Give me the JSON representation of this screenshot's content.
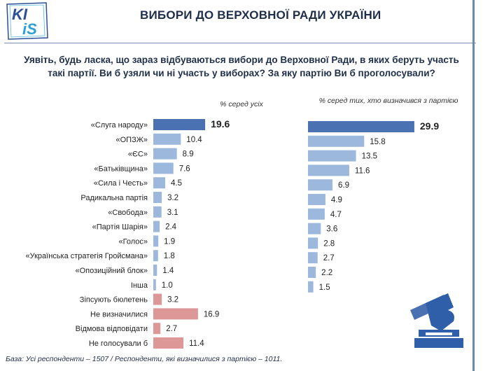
{
  "logo": {
    "icon": "kiis-logo",
    "top_text": "KI",
    "bottom_text": "iS"
  },
  "header": {
    "title": "ВИБОРИ ДО ВЕРХОВНОЇ РАДИ УКРАЇНИ"
  },
  "question": "Уявіть, будь ласка, що зараз відбуваються вибори до Верховної Ради, в яких беруть участь такі партії. Ви б узяли чи ні участь у виборах? За яку партію Ви б проголосували?",
  "footer": "База: Усі респонденти – 1507 / Респонденти, які визначилися з партією – 1011.",
  "colors": {
    "highlight": "#4a72b2",
    "party": "#9db8dd",
    "nonvote": "#dd9797",
    "text": "#1f2f4a"
  },
  "chart_data": [
    {
      "type": "bar",
      "orientation": "horizontal",
      "subtitle": "% серед усіх",
      "categories": [
        "«Слуга народу»",
        "«ОПЗЖ»",
        "«ЄС»",
        "«Батьківщина»",
        "«Сила і Честь»",
        "Радикальна партія",
        "«Свобода»",
        "«Партія Шарія»",
        "«Голос»",
        "«Українська стратегія Гройсмана»",
        "«Опозиційний блок»",
        "Інша",
        "Зіпсують бюлетень",
        "Не визначилися",
        "Відмова відповідати",
        "Не голосували б"
      ],
      "values": [
        19.6,
        10.4,
        8.9,
        7.6,
        4.5,
        3.2,
        3.1,
        2.4,
        1.9,
        1.8,
        1.4,
        1.0,
        3.2,
        16.9,
        2.7,
        11.4
      ],
      "value_labels": [
        "19.6",
        "10.4",
        "8.9",
        "7.6",
        "4.5",
        "3.2",
        "3.1",
        "2.4",
        "1.9",
        "1.8",
        "1.4",
        "1.0",
        "3.2",
        "16.9",
        "2.7",
        "11.4"
      ],
      "bar_colors": [
        "highlight",
        "party",
        "party",
        "party",
        "party",
        "party",
        "party",
        "party",
        "party",
        "party",
        "party",
        "party",
        "nonvote",
        "nonvote",
        "nonvote",
        "nonvote"
      ],
      "bold_labels": [
        true,
        false,
        false,
        false,
        false,
        false,
        false,
        false,
        false,
        false,
        false,
        false,
        false,
        false,
        false,
        false
      ],
      "grid": false
    },
    {
      "type": "bar",
      "orientation": "horizontal",
      "subtitle": "% серед тих, хто визначився з партією",
      "categories": [
        "«Слуга народу»",
        "«ОПЗЖ»",
        "«ЄС»",
        "«Батьківщина»",
        "«Сила і Честь»",
        "Радикальна партія",
        "«Свобода»",
        "«Партія Шарія»",
        "«Голос»",
        "«Українська стратегія Гройсмана»",
        "«Опозиційний блок»",
        "Інша"
      ],
      "values": [
        29.9,
        15.8,
        13.5,
        11.6,
        6.9,
        4.9,
        4.7,
        3.6,
        2.8,
        2.7,
        2.2,
        1.5
      ],
      "value_labels": [
        "29.9",
        "15.8",
        "13.5",
        "11.6",
        "6.9",
        "4.9",
        "4.7",
        "3.6",
        "2.8",
        "2.7",
        "2.2",
        "1.5"
      ],
      "bar_colors": [
        "highlight",
        "party",
        "party",
        "party",
        "party",
        "party",
        "party",
        "party",
        "party",
        "party",
        "party",
        "party"
      ],
      "bold_labels": [
        true,
        false,
        false,
        false,
        false,
        false,
        false,
        false,
        false,
        false,
        false,
        false
      ],
      "grid": false
    }
  ]
}
